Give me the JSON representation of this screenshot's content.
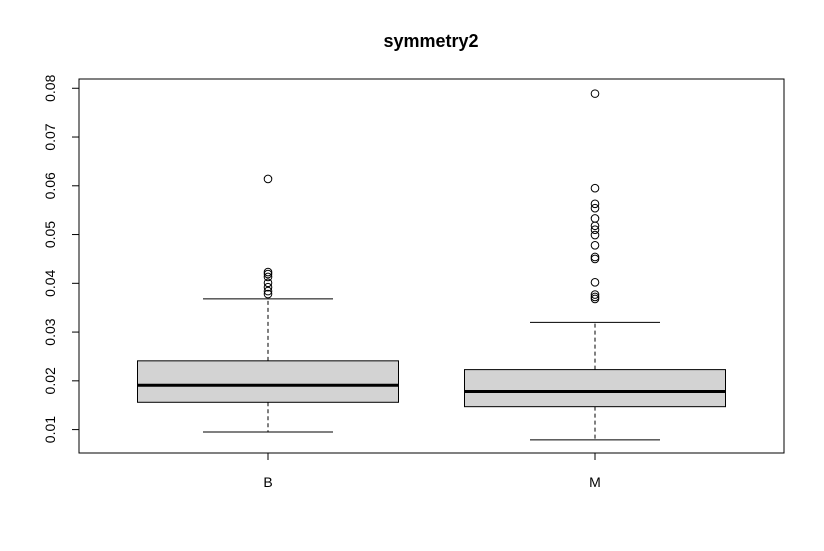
{
  "chart_data": {
    "type": "boxplot",
    "title": "symmetry2",
    "xlabel": "",
    "ylabel": "",
    "ylim": [
      0.0052,
      0.0819
    ],
    "y_ticks": [
      0.01,
      0.02,
      0.03,
      0.04,
      0.05,
      0.06,
      0.07,
      0.08
    ],
    "y_tick_labels": [
      "0.01",
      "0.02",
      "0.03",
      "0.04",
      "0.05",
      "0.06",
      "0.07",
      "0.08"
    ],
    "box_fill": "#d3d3d3",
    "categories": [
      "B",
      "M"
    ],
    "boxes": [
      {
        "name": "B",
        "whisker_low": 0.0095,
        "q1": 0.0156,
        "median": 0.0191,
        "q3": 0.0241,
        "whisker_high": 0.0368,
        "outliers": [
          0.0614,
          0.0423,
          0.0419,
          0.0413,
          0.0401,
          0.0392,
          0.0384,
          0.0378
        ]
      },
      {
        "name": "M",
        "whisker_low": 0.0079,
        "q1": 0.0147,
        "median": 0.0178,
        "q3": 0.0223,
        "whisker_high": 0.032,
        "outliers": [
          0.0789,
          0.0595,
          0.0563,
          0.0554,
          0.0533,
          0.0518,
          0.051,
          0.0499,
          0.0478,
          0.0454,
          0.045,
          0.0402,
          0.0377,
          0.0372,
          0.0368
        ]
      }
    ]
  }
}
